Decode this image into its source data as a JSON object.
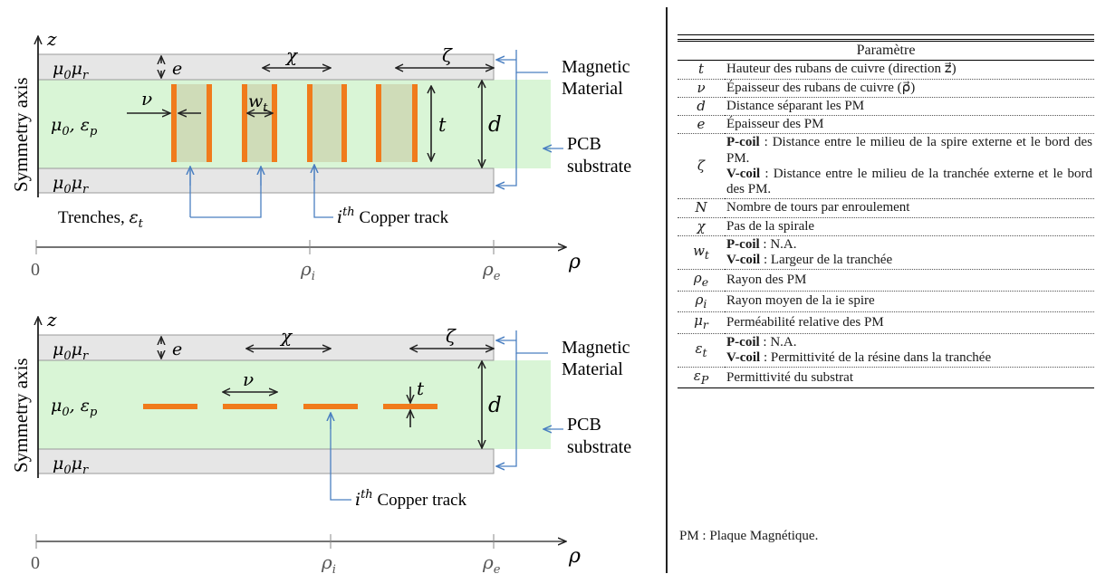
{
  "diagrams": [
    {
      "axis_z": "z",
      "symmetry_axis": "Symmetry axis",
      "top_material": "μ0μr",
      "middle_material": "μ0, εp",
      "bottom_material": "μ0μr",
      "e": "e",
      "chi": "χ",
      "zeta": "ζ",
      "nu": "ν",
      "wt": "wt",
      "t": "t",
      "d": "d",
      "magnetic_label": [
        "Magnetic",
        "Material"
      ],
      "pcb_label": [
        "PCB",
        "substrate"
      ],
      "trenches_label": "Trenches, εt",
      "copper_label": "ith Copper track",
      "axis_zero": "0",
      "rho_i": "ρi",
      "rho_e": "ρe",
      "rho": "ρ"
    },
    {
      "axis_z": "z",
      "symmetry_axis": "Symmetry axis",
      "top_material": "μ0μr",
      "middle_material": "μ0, εp",
      "bottom_material": "μ0μr",
      "e": "e",
      "chi": "χ",
      "zeta": "ζ",
      "nu": "ν",
      "t": "t",
      "d": "d",
      "magnetic_label": [
        "Magnetic",
        "Material"
      ],
      "pcb_label": [
        "PCB",
        "substrate"
      ],
      "copper_label": "ith Copper track",
      "axis_zero": "0",
      "rho_i": "ρi",
      "rho_e": "ρe",
      "rho": "ρ"
    }
  ],
  "table": {
    "header": "Paramètre",
    "rows": [
      {
        "sym": "t",
        "desc": "Hauteur des rubans de cuivre (direction z⃗)"
      },
      {
        "sym": "ν",
        "desc": "Épaisseur des rubans de cuivre (ρ⃗)"
      },
      {
        "sym": "d",
        "desc": "Distance séparant les PM"
      },
      {
        "sym": "e",
        "desc": "Épaisseur des PM"
      },
      {
        "sym": "ζ",
        "lines": [
          {
            "bold": "P-coil",
            "text": " : Distance entre le milieu de la spire externe et le bord des PM."
          },
          {
            "bold": "V-coil",
            "text": " : Distance entre le milieu de la tranchée externe et le bord des PM."
          }
        ]
      },
      {
        "sym": "N",
        "desc": "Nombre de tours par enroulement"
      },
      {
        "sym": "χ",
        "desc": "Pas de la spirale"
      },
      {
        "sym": "wt",
        "lines": [
          {
            "bold": "P-coil",
            "text": " : N.A."
          },
          {
            "bold": "V-coil",
            "text": " : Largeur de la tranchée"
          }
        ]
      },
      {
        "sym": "ρe",
        "desc": "Rayon des PM"
      },
      {
        "sym": "ρi",
        "desc": "Rayon moyen de la ie spire"
      },
      {
        "sym": "μr",
        "desc": "Perméabilité relative des PM"
      },
      {
        "sym": "εt",
        "lines": [
          {
            "bold": "P-coil",
            "text": " : N.A."
          },
          {
            "bold": "V-coil",
            "text": " : Permittivité de la résine dans la tranchée"
          }
        ]
      },
      {
        "sym": "εP",
        "desc": "Permittivité du substrat"
      }
    ]
  },
  "footnote": "PM : Plaque Magnétique.",
  "colors": {
    "substrate": "#d9f5d6",
    "magnetic": "#e6e6e6",
    "trench": "#cfdcb8",
    "copper": "#f07b1c",
    "leader": "#4a7fc1"
  }
}
